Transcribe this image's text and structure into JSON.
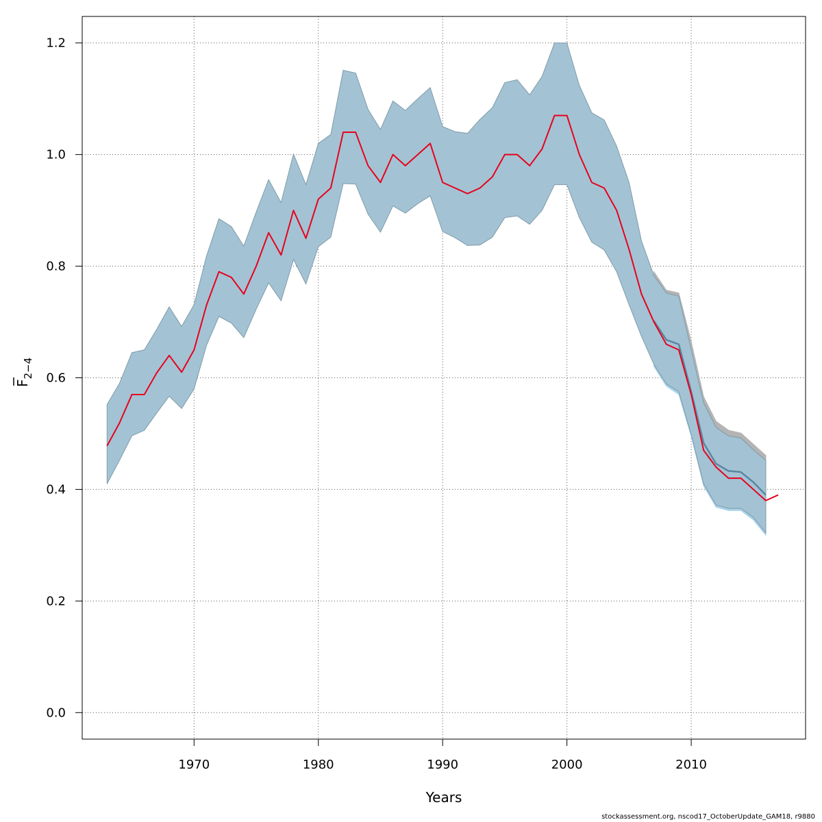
{
  "chart_data": {
    "type": "area",
    "xlabel": "Years",
    "ylabel": "F",
    "ylabel_sub": "2−4",
    "xlim": [
      1961,
      2019.2
    ],
    "ylim": [
      -0.0475,
      1.2475
    ],
    "x_ticks": [
      1970,
      1980,
      1990,
      2000,
      2010
    ],
    "x_tick_labels": [
      "1970",
      "1980",
      "1990",
      "2000",
      "2010"
    ],
    "y_ticks": [
      0.0,
      0.2,
      0.4,
      0.6,
      0.8,
      1.0,
      1.2
    ],
    "y_tick_labels": [
      "0.0",
      "0.2",
      "0.4",
      "0.6",
      "0.8",
      "1.0",
      "1.2"
    ],
    "grid": true,
    "colors": {
      "band_grey": "#b4b4b4",
      "band_light_blue": "#a8d2ea",
      "band_fill": "#a3c3d4",
      "band_edge": "#7f9aa8",
      "alt_line": "#5a86a0",
      "estimate_line": "#e8001c",
      "grid": "#555555"
    },
    "series": [
      {
        "role": "retro_band_grey",
        "x": [
          2007,
          2008,
          2009,
          2010,
          2011,
          2012,
          2013,
          2014,
          2015,
          2016
        ],
        "lower": [
          0.626,
          0.59,
          0.576,
          0.5,
          0.412,
          0.374,
          0.368,
          0.368,
          0.352,
          0.325
        ],
        "upper": [
          0.79,
          0.757,
          0.752,
          0.665,
          0.566,
          0.522,
          0.506,
          0.501,
          0.481,
          0.461
        ]
      },
      {
        "role": "retro_band_light_blue",
        "x": [
          2007,
          2008,
          2009,
          2010,
          2011,
          2012,
          2013,
          2014,
          2015,
          2016
        ],
        "lower": [
          0.62,
          0.585,
          0.57,
          0.495,
          0.406,
          0.368,
          0.362,
          0.362,
          0.345,
          0.318
        ],
        "upper": [
          0.78,
          0.745,
          0.74,
          0.652,
          0.553,
          0.508,
          0.493,
          0.49,
          0.468,
          0.45
        ]
      },
      {
        "role": "confidence_band",
        "x": [
          1963,
          1964,
          1965,
          1966,
          1967,
          1968,
          1969,
          1970,
          1971,
          1972,
          1973,
          1974,
          1975,
          1976,
          1977,
          1978,
          1979,
          1980,
          1981,
          1982,
          1983,
          1984,
          1985,
          1986,
          1987,
          1988,
          1989,
          1990,
          1991,
          1992,
          1993,
          1994,
          1995,
          1996,
          1997,
          1998,
          1999,
          2000,
          2001,
          2002,
          2003,
          2004,
          2005,
          2006,
          2007,
          2008,
          2009,
          2010,
          2011,
          2012,
          2013,
          2014,
          2015,
          2016
        ],
        "lower": [
          0.41,
          0.452,
          0.496,
          0.506,
          0.537,
          0.567,
          0.545,
          0.58,
          0.658,
          0.71,
          0.698,
          0.672,
          0.723,
          0.77,
          0.738,
          0.812,
          0.768,
          0.835,
          0.852,
          0.948,
          0.947,
          0.893,
          0.861,
          0.908,
          0.895,
          0.912,
          0.926,
          0.862,
          0.851,
          0.837,
          0.838,
          0.852,
          0.887,
          0.89,
          0.875,
          0.9,
          0.946,
          0.946,
          0.887,
          0.843,
          0.829,
          0.79,
          0.731,
          0.674,
          0.624,
          0.589,
          0.575,
          0.498,
          0.41,
          0.372,
          0.366,
          0.366,
          0.35,
          0.322
        ],
        "upper": [
          0.552,
          0.59,
          0.645,
          0.65,
          0.687,
          0.727,
          0.692,
          0.731,
          0.818,
          0.885,
          0.871,
          0.836,
          0.897,
          0.955,
          0.914,
          1.001,
          0.946,
          1.02,
          1.036,
          1.151,
          1.146,
          1.081,
          1.045,
          1.096,
          1.079,
          1.1,
          1.12,
          1.05,
          1.041,
          1.038,
          1.063,
          1.084,
          1.129,
          1.134,
          1.107,
          1.14,
          1.2,
          1.2,
          1.124,
          1.075,
          1.062,
          1.015,
          0.95,
          0.845,
          0.783,
          0.752,
          0.746,
          0.65,
          0.555,
          0.511,
          0.496,
          0.492,
          0.471,
          0.452
        ]
      },
      {
        "role": "retro_estimate_line",
        "x": [
          2007,
          2008,
          2009,
          2010,
          2011,
          2012,
          2013,
          2014,
          2015,
          2016
        ],
        "y": [
          0.702,
          0.668,
          0.66,
          0.575,
          0.483,
          0.446,
          0.433,
          0.431,
          0.413,
          0.39
        ]
      },
      {
        "role": "estimate_line",
        "x": [
          1963,
          1964,
          1965,
          1966,
          1967,
          1968,
          1969,
          1970,
          1971,
          1972,
          1973,
          1974,
          1975,
          1976,
          1977,
          1978,
          1979,
          1980,
          1981,
          1982,
          1983,
          1984,
          1985,
          1986,
          1987,
          1988,
          1989,
          1990,
          1991,
          1992,
          1993,
          1994,
          1995,
          1996,
          1997,
          1998,
          1999,
          2000,
          2001,
          2002,
          2003,
          2004,
          2005,
          2006,
          2007,
          2008,
          2009,
          2010,
          2011,
          2012,
          2013,
          2014,
          2015,
          2016,
          2017
        ],
        "y": [
          0.478,
          0.519,
          0.57,
          0.57,
          0.609,
          0.64,
          0.61,
          0.65,
          0.73,
          0.79,
          0.78,
          0.75,
          0.8,
          0.86,
          0.82,
          0.9,
          0.85,
          0.92,
          0.94,
          1.04,
          1.04,
          0.98,
          0.95,
          1.0,
          0.98,
          1.0,
          1.02,
          0.95,
          0.94,
          0.93,
          0.94,
          0.96,
          1.0,
          1.0,
          0.98,
          1.01,
          1.07,
          1.07,
          1.0,
          0.95,
          0.94,
          0.9,
          0.83,
          0.75,
          0.7,
          0.66,
          0.65,
          0.57,
          0.47,
          0.44,
          0.42,
          0.42,
          0.4,
          0.38,
          0.39
        ]
      }
    ]
  },
  "footer": {
    "text": "stockassessment.org, nscod17_OctoberUpdate_GAM18, r9880"
  }
}
